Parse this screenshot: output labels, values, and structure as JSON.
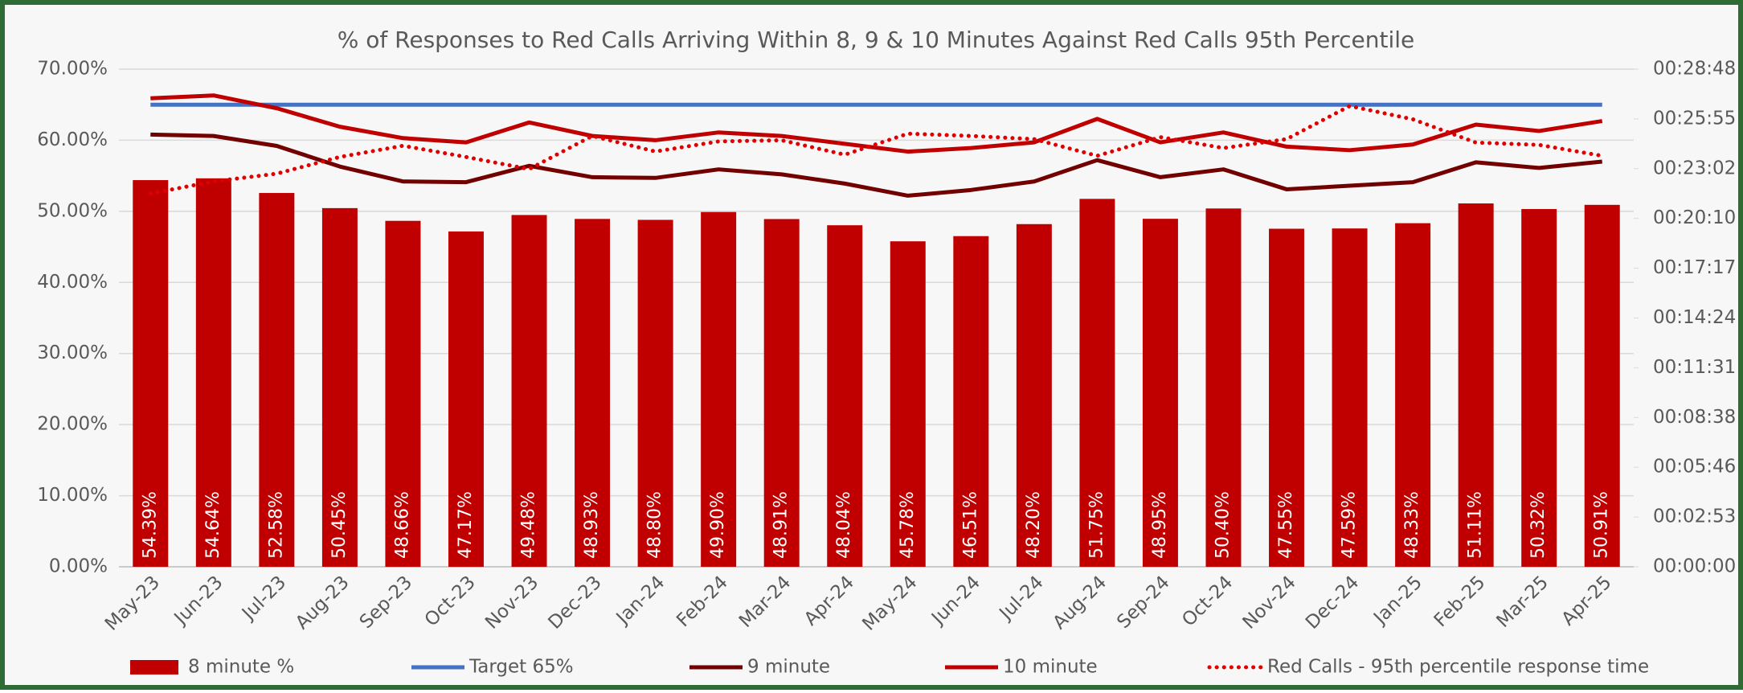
{
  "chart_data": {
    "type": "combo",
    "title": "% of Responses to Red Calls Arriving Within 8, 9 & 10 Minutes Against Red Calls 95th Percentile",
    "categories": [
      "May-23",
      "Jun-23",
      "Jul-23",
      "Aug-23",
      "Sep-23",
      "Oct-23",
      "Nov-23",
      "Dec-23",
      "Jan-24",
      "Feb-24",
      "Mar-24",
      "Apr-24",
      "May-24",
      "Jun-24",
      "Jul-24",
      "Aug-24",
      "Sep-24",
      "Oct-24",
      "Nov-24",
      "Dec-24",
      "Jan-25",
      "Feb-25",
      "Mar-25",
      "Apr-25"
    ],
    "ylim": [
      0,
      70
    ],
    "yticks": [
      {
        "value": 0,
        "label": "0.00%"
      },
      {
        "value": 10,
        "label": "10.00%"
      },
      {
        "value": 20,
        "label": "20.00%"
      },
      {
        "value": 30,
        "label": "30.00%"
      },
      {
        "value": 40,
        "label": "40.00%"
      },
      {
        "value": 50,
        "label": "50.00%"
      },
      {
        "value": 60,
        "label": "60.00%"
      },
      {
        "value": 70,
        "label": "70.00%"
      }
    ],
    "y2lim": [
      0,
      1728
    ],
    "y2ticks": [
      {
        "value": 0,
        "label": "00:00:00"
      },
      {
        "value": 172.8,
        "label": "00:02:53"
      },
      {
        "value": 345.6,
        "label": "00:05:46"
      },
      {
        "value": 518.4,
        "label": "00:08:38"
      },
      {
        "value": 691.2,
        "label": "00:11:31"
      },
      {
        "value": 864,
        "label": "00:14:24"
      },
      {
        "value": 1036.8,
        "label": "00:17:17"
      },
      {
        "value": 1209.6,
        "label": "00:20:10"
      },
      {
        "value": 1382.4,
        "label": "00:23:02"
      },
      {
        "value": 1555.2,
        "label": "00:25:55"
      },
      {
        "value": 1728,
        "label": "00:28:48"
      }
    ],
    "grid": true,
    "legend": "bottom",
    "series": [
      {
        "name": "8 minute %",
        "type": "bar",
        "color": "#c00000",
        "values": [
          54.39,
          54.64,
          52.58,
          50.45,
          48.66,
          47.17,
          49.48,
          48.93,
          48.8,
          49.9,
          48.91,
          48.04,
          45.78,
          46.51,
          48.2,
          51.75,
          48.95,
          50.4,
          47.55,
          47.59,
          48.33,
          51.11,
          50.32,
          50.91
        ],
        "value_labels": [
          "54.39%",
          "54.64%",
          "52.58%",
          "50.45%",
          "48.66%",
          "47.17%",
          "49.48%",
          "48.93%",
          "48.80%",
          "49.90%",
          "48.91%",
          "48.04%",
          "45.78%",
          "46.51%",
          "48.20%",
          "51.75%",
          "48.95%",
          "50.40%",
          "47.55%",
          "47.59%",
          "48.33%",
          "51.11%",
          "50.32%",
          "50.91%"
        ]
      },
      {
        "name": "Target 65%",
        "type": "line",
        "color": "#4472c4",
        "values": [
          65,
          65,
          65,
          65,
          65,
          65,
          65,
          65,
          65,
          65,
          65,
          65,
          65,
          65,
          65,
          65,
          65,
          65,
          65,
          65,
          65,
          65,
          65,
          65
        ]
      },
      {
        "name": "9 minute",
        "type": "line",
        "color": "#720000",
        "values": [
          60.8,
          60.6,
          59.2,
          56.3,
          54.2,
          54.1,
          56.4,
          54.8,
          54.7,
          55.9,
          55.2,
          53.9,
          52.2,
          53.0,
          54.2,
          57.2,
          54.8,
          55.9,
          53.1,
          53.6,
          54.1,
          56.9,
          56.1,
          57.0
        ]
      },
      {
        "name": "10 minute",
        "type": "line",
        "color": "#c00000",
        "values": [
          65.9,
          66.3,
          64.5,
          61.9,
          60.3,
          59.7,
          62.5,
          60.6,
          60.0,
          61.1,
          60.6,
          59.5,
          58.4,
          58.9,
          59.7,
          63.0,
          59.7,
          61.1,
          59.1,
          58.6,
          59.4,
          62.2,
          61.3,
          62.7
        ]
      },
      {
        "name": "Red Calls - 95th percentile response time",
        "type": "line",
        "color": "#e00000",
        "line_style": "dotted",
        "axis": "y2",
        "values": [
          1296,
          1338,
          1365,
          1423,
          1462,
          1423,
          1381,
          1496,
          1442,
          1477,
          1481,
          1431,
          1504,
          1496,
          1485,
          1427,
          1492,
          1454,
          1485,
          1600,
          1554,
          1473,
          1465,
          1427
        ]
      }
    ]
  }
}
